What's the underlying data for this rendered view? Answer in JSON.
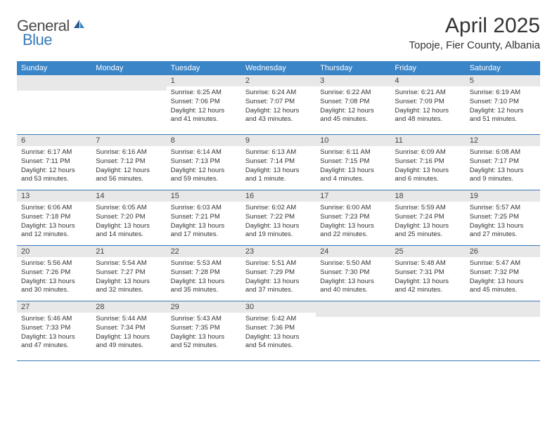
{
  "logo": {
    "word1": "General",
    "word2": "Blue"
  },
  "title": "April 2025",
  "location": "Topoje, Fier County, Albania",
  "colors": {
    "header_bg": "#3a85c8",
    "header_text": "#ffffff",
    "daynum_bg": "#e8e8e8",
    "divider": "#3a7ab8",
    "body_text": "#333333",
    "logo_gray": "#4a4a4a",
    "logo_blue": "#3a7ab8"
  },
  "day_headers": [
    "Sunday",
    "Monday",
    "Tuesday",
    "Wednesday",
    "Thursday",
    "Friday",
    "Saturday"
  ],
  "weeks": [
    [
      null,
      null,
      {
        "n": "1",
        "sr": "6:25 AM",
        "ss": "7:06 PM",
        "dl": "12 hours and 41 minutes."
      },
      {
        "n": "2",
        "sr": "6:24 AM",
        "ss": "7:07 PM",
        "dl": "12 hours and 43 minutes."
      },
      {
        "n": "3",
        "sr": "6:22 AM",
        "ss": "7:08 PM",
        "dl": "12 hours and 45 minutes."
      },
      {
        "n": "4",
        "sr": "6:21 AM",
        "ss": "7:09 PM",
        "dl": "12 hours and 48 minutes."
      },
      {
        "n": "5",
        "sr": "6:19 AM",
        "ss": "7:10 PM",
        "dl": "12 hours and 51 minutes."
      }
    ],
    [
      {
        "n": "6",
        "sr": "6:17 AM",
        "ss": "7:11 PM",
        "dl": "12 hours and 53 minutes."
      },
      {
        "n": "7",
        "sr": "6:16 AM",
        "ss": "7:12 PM",
        "dl": "12 hours and 56 minutes."
      },
      {
        "n": "8",
        "sr": "6:14 AM",
        "ss": "7:13 PM",
        "dl": "12 hours and 59 minutes."
      },
      {
        "n": "9",
        "sr": "6:13 AM",
        "ss": "7:14 PM",
        "dl": "13 hours and 1 minute."
      },
      {
        "n": "10",
        "sr": "6:11 AM",
        "ss": "7:15 PM",
        "dl": "13 hours and 4 minutes."
      },
      {
        "n": "11",
        "sr": "6:09 AM",
        "ss": "7:16 PM",
        "dl": "13 hours and 6 minutes."
      },
      {
        "n": "12",
        "sr": "6:08 AM",
        "ss": "7:17 PM",
        "dl": "13 hours and 9 minutes."
      }
    ],
    [
      {
        "n": "13",
        "sr": "6:06 AM",
        "ss": "7:18 PM",
        "dl": "13 hours and 12 minutes."
      },
      {
        "n": "14",
        "sr": "6:05 AM",
        "ss": "7:20 PM",
        "dl": "13 hours and 14 minutes."
      },
      {
        "n": "15",
        "sr": "6:03 AM",
        "ss": "7:21 PM",
        "dl": "13 hours and 17 minutes."
      },
      {
        "n": "16",
        "sr": "6:02 AM",
        "ss": "7:22 PM",
        "dl": "13 hours and 19 minutes."
      },
      {
        "n": "17",
        "sr": "6:00 AM",
        "ss": "7:23 PM",
        "dl": "13 hours and 22 minutes."
      },
      {
        "n": "18",
        "sr": "5:59 AM",
        "ss": "7:24 PM",
        "dl": "13 hours and 25 minutes."
      },
      {
        "n": "19",
        "sr": "5:57 AM",
        "ss": "7:25 PM",
        "dl": "13 hours and 27 minutes."
      }
    ],
    [
      {
        "n": "20",
        "sr": "5:56 AM",
        "ss": "7:26 PM",
        "dl": "13 hours and 30 minutes."
      },
      {
        "n": "21",
        "sr": "5:54 AM",
        "ss": "7:27 PM",
        "dl": "13 hours and 32 minutes."
      },
      {
        "n": "22",
        "sr": "5:53 AM",
        "ss": "7:28 PM",
        "dl": "13 hours and 35 minutes."
      },
      {
        "n": "23",
        "sr": "5:51 AM",
        "ss": "7:29 PM",
        "dl": "13 hours and 37 minutes."
      },
      {
        "n": "24",
        "sr": "5:50 AM",
        "ss": "7:30 PM",
        "dl": "13 hours and 40 minutes."
      },
      {
        "n": "25",
        "sr": "5:48 AM",
        "ss": "7:31 PM",
        "dl": "13 hours and 42 minutes."
      },
      {
        "n": "26",
        "sr": "5:47 AM",
        "ss": "7:32 PM",
        "dl": "13 hours and 45 minutes."
      }
    ],
    [
      {
        "n": "27",
        "sr": "5:46 AM",
        "ss": "7:33 PM",
        "dl": "13 hours and 47 minutes."
      },
      {
        "n": "28",
        "sr": "5:44 AM",
        "ss": "7:34 PM",
        "dl": "13 hours and 49 minutes."
      },
      {
        "n": "29",
        "sr": "5:43 AM",
        "ss": "7:35 PM",
        "dl": "13 hours and 52 minutes."
      },
      {
        "n": "30",
        "sr": "5:42 AM",
        "ss": "7:36 PM",
        "dl": "13 hours and 54 minutes."
      },
      null,
      null,
      null
    ]
  ],
  "labels": {
    "sunrise": "Sunrise:",
    "sunset": "Sunset:",
    "daylight": "Daylight:"
  }
}
